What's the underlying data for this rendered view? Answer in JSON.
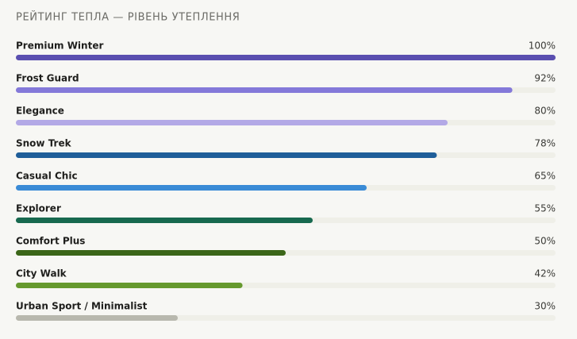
{
  "chart_data": {
    "type": "bar",
    "orientation": "horizontal",
    "title": "РЕЙТИНГ ТЕПЛА — РІВЕНЬ УТЕПЛЕННЯ",
    "categories": [
      "Premium Winter",
      "Frost Guard",
      "Elegance",
      "Snow Trek",
      "Casual Chic",
      "Explorer",
      "Comfort Plus",
      "City Walk",
      "Urban Sport / Minimalist"
    ],
    "values": [
      100,
      92,
      80,
      78,
      65,
      55,
      50,
      42,
      30
    ],
    "value_labels": [
      "100%",
      "92%",
      "80%",
      "78%",
      "65%",
      "55%",
      "50%",
      "42%",
      "30%"
    ],
    "colors": [
      "#5a4fb0",
      "#8479d9",
      "#b3a9e6",
      "#1f5e99",
      "#3a8bd6",
      "#17694f",
      "#3b6618",
      "#66992e",
      "#b8b8ae"
    ],
    "xlim": [
      0,
      100
    ]
  }
}
